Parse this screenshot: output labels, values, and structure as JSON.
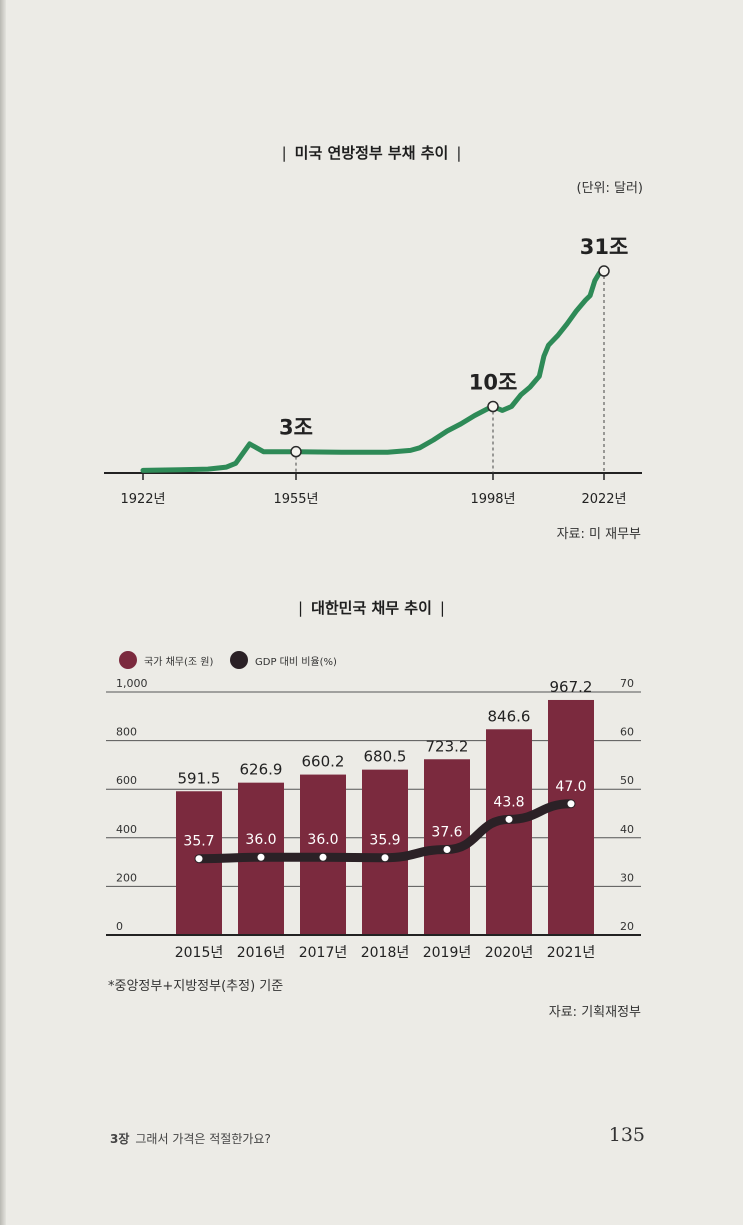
{
  "chart_data": [
    {
      "type": "line",
      "title": "미국 연방정부 부채 추이",
      "unit": "(단위: 달러)",
      "source": "자료: 미 재무부",
      "xlabel": "",
      "ylabel": "",
      "x_ticks": [
        "1922년",
        "1955년",
        "1998년",
        "2022년"
      ],
      "annotations": [
        {
          "year": 1955,
          "value": 3,
          "label": "3조"
        },
        {
          "year": 1998,
          "value": 10,
          "label": "10조"
        },
        {
          "year": 2022,
          "value": 31,
          "label": "31조"
        }
      ],
      "x": [
        1922,
        1930,
        1936,
        1940,
        1942,
        1945,
        1948,
        1955,
        1965,
        1975,
        1980,
        1982,
        1985,
        1988,
        1991,
        1994,
        1997,
        1998,
        2000,
        2002,
        2004,
        2006,
        2008,
        2009,
        2010,
        2012,
        2014,
        2016,
        2018,
        2019,
        2020,
        2021,
        2022
      ],
      "y": [
        0.1,
        0.2,
        0.3,
        0.6,
        1.2,
        4.2,
        3.0,
        3.0,
        2.9,
        2.9,
        3.2,
        3.6,
        4.8,
        6.2,
        7.3,
        8.6,
        9.7,
        10.0,
        9.4,
        10.0,
        11.8,
        13.0,
        14.7,
        17.8,
        19.5,
        21.0,
        22.8,
        24.8,
        26.5,
        27.2,
        29.5,
        30.7,
        31.0
      ],
      "color": "#2e8a57"
    },
    {
      "type": "bar",
      "title": "대한민국 채무 추이",
      "source": "자료: 기획재정부",
      "note": "*중앙정부+지방정부(추정) 기준",
      "categories": [
        "2015년",
        "2016년",
        "2017년",
        "2018년",
        "2019년",
        "2020년",
        "2021년"
      ],
      "series": [
        {
          "name": "국가 채무(조 원)",
          "type": "bar",
          "axis": "left",
          "color": "#7b2a3e",
          "values": [
            591.5,
            626.9,
            660.2,
            680.5,
            723.2,
            846.6,
            967.2
          ],
          "labels": [
            "591.5",
            "626.9",
            "660.2",
            "680.5",
            "723.2",
            "846.6",
            "967.2"
          ]
        },
        {
          "name": "GDP 대비 비율(%)",
          "type": "line",
          "axis": "right",
          "color": "#2b2126",
          "values": [
            35.7,
            36.0,
            36.0,
            35.9,
            37.6,
            43.8,
            47.0
          ],
          "labels": [
            "35.7",
            "36.0",
            "36.0",
            "35.9",
            "37.6",
            "43.8",
            "47.0"
          ]
        }
      ],
      "ylim_left": [
        0,
        1000
      ],
      "ylim_right": [
        20,
        70
      ],
      "yticks_left": [
        "0",
        "200",
        "400",
        "600",
        "800",
        "1,000"
      ],
      "yticks_right": [
        "20",
        "30",
        "40",
        "50",
        "60",
        "70"
      ]
    }
  ],
  "footer": {
    "chapter": "3장",
    "chapter_title": "그래서 가격은 적절한가요?",
    "page_number": "135"
  }
}
